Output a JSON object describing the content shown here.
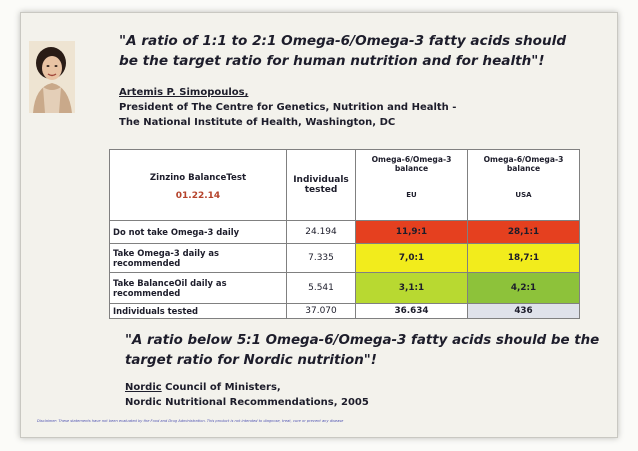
{
  "quote_top": "\"A ratio of 1:1 to 2:1 Omega-6/Omega-3 fatty acids should be the target ratio for human nutrition and for health\"!",
  "author": {
    "name": "Artemis P. Simopoulos,",
    "line1": "President of The Centre for Genetics, Nutrition and Health -",
    "line2": "The National Institute of Health, Washington, DC"
  },
  "table": {
    "title": "Zinzino BalanceTest",
    "date": "01.22.14",
    "col_individuals": "Individuals tested",
    "col_eu_header": "Omega-6/Omega-3 balance",
    "col_eu_sub": "EU",
    "col_usa_header": "Omega-6/Omega-3 balance",
    "col_usa_sub": "USA",
    "rows": [
      {
        "label": "Do not take Omega-3 daily",
        "individuals": "24.194",
        "eu": "11,9:1",
        "usa": "28,1:1"
      },
      {
        "label": "Take Omega-3 daily as recommended",
        "individuals": "7.335",
        "eu": "7,0:1",
        "usa": "18,7:1"
      },
      {
        "label": "Take BalanceOil daily as recommended",
        "individuals": "5.541",
        "eu": "3,1:1",
        "usa": "4,2:1"
      },
      {
        "label": "Individuals tested",
        "individuals": "37.070",
        "eu": "36.634",
        "usa": "436"
      }
    ],
    "colors": {
      "red": "#e5401f",
      "yellow": "#f2ec1c",
      "green_light": "#b8d931",
      "green": "#8dc23a",
      "total_usa": "#dfe2ea"
    }
  },
  "quote_bottom": "\"A ratio below 5:1 Omega-6/Omega-3 fatty acids should be the target ratio for Nordic nutrition\"!",
  "source_bottom": {
    "org": "Nordic",
    "line1_rest": " Council of Ministers,",
    "line2": "Nordic Nutritional Recommendations, 2005"
  },
  "disclaimer": "Disclaimer: These statements have not been evaluated by the Food and Drug Administration. This product is not intended to diagnose, treat, cure or prevent any disease"
}
